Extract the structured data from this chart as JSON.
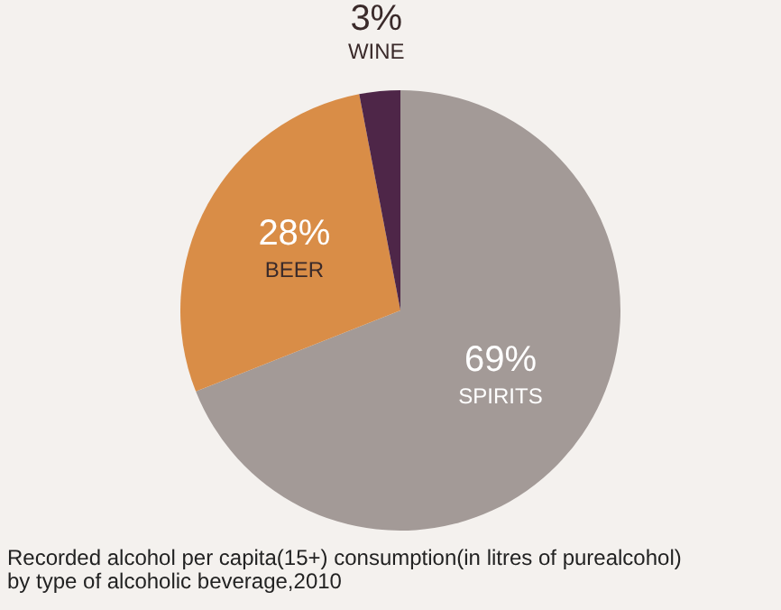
{
  "chart_data": {
    "type": "pie",
    "categories": [
      "SPIRITS",
      "BEER",
      "WINE"
    ],
    "values": [
      69,
      28,
      3
    ],
    "colors": [
      "#a39a97",
      "#d98d47",
      "#4e2648"
    ],
    "value_labels": [
      "69%",
      "28%",
      "3%"
    ],
    "annotations": [
      "Recorded alcohol per capita(15+) consumption(in litres of purealcohol)",
      " by type of alcoholic beverage,2010"
    ]
  }
}
